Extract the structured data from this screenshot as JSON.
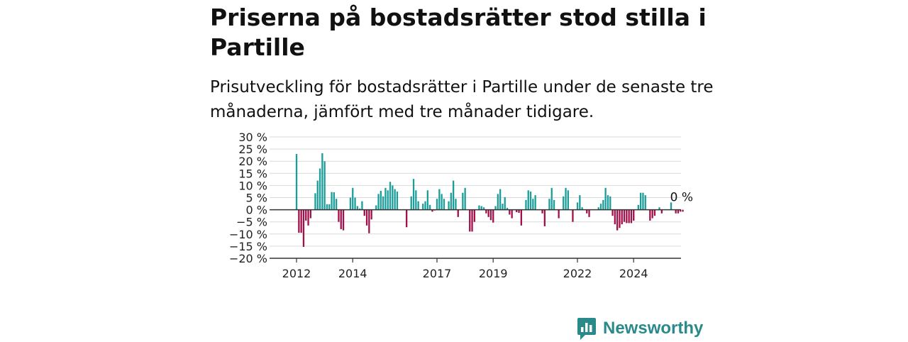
{
  "header": {
    "title": "Priserna på bostadsrätter stod stilla i Partille",
    "subtitle": "Prisutveckling för bostadsrätter i Partille under de senaste tre månaderna, jämfört med tre månader tidigare."
  },
  "chart_data": {
    "type": "bar",
    "ylim": [
      -20,
      30
    ],
    "y_ticks": [
      30,
      25,
      20,
      15,
      10,
      5,
      0,
      -5,
      -10,
      -15,
      -20
    ],
    "y_tick_labels": [
      "30 %",
      "25 %",
      "20 %",
      "15 %",
      "10 %",
      "5 %",
      "0 %",
      "−5 %",
      "−10 %",
      "−15 %",
      "−20 %"
    ],
    "x_ticks": [
      2012,
      2014,
      2017,
      2019,
      2022,
      2024
    ],
    "x_tick_labels": [
      "2012",
      "2014",
      "2017",
      "2019",
      "2022",
      "2024"
    ],
    "grid": true,
    "colors": {
      "positive": "#1b9e9a",
      "negative": "#a0104a",
      "grid": "#d9d9d9",
      "axis": "#333333"
    },
    "start_year": 2012,
    "values": [
      23,
      -9.5,
      -9.5,
      -15.3,
      -4.5,
      -6.5,
      -3.5,
      0,
      6.8,
      12,
      17,
      23.3,
      20,
      2.3,
      2.3,
      7.3,
      7.2,
      4.5,
      -5,
      -8,
      -8.5,
      0,
      0,
      5,
      9,
      5,
      1.5,
      0.5,
      3.5,
      -2.5,
      -6.5,
      -9.7,
      -4,
      0,
      1.8,
      6.5,
      7.8,
      5.5,
      9,
      8,
      11.5,
      10,
      8.5,
      7.5,
      0,
      0,
      0,
      -7.2,
      0,
      5.5,
      12.7,
      8,
      3.5,
      0,
      2.5,
      3.5,
      8,
      2,
      -0.8,
      -0.3,
      4.5,
      8.5,
      6.5,
      4.5,
      0,
      3.5,
      7,
      12,
      4.5,
      -3,
      0,
      7,
      9,
      0,
      -9,
      -9,
      -5,
      0,
      1.8,
      1.5,
      1,
      -1.5,
      -3,
      -4.3,
      -5.3,
      1.5,
      6.5,
      8.5,
      2.5,
      5.2,
      0.8,
      -2,
      -3.5,
      0,
      -1,
      -1.3,
      -6.5,
      0,
      4,
      8,
      7.5,
      4.5,
      6,
      0,
      0,
      -1.5,
      -6.8,
      0,
      4.5,
      9,
      4,
      0,
      -3.5,
      0,
      5.5,
      9,
      8,
      0,
      -5,
      0,
      3,
      6,
      1,
      0,
      -1.5,
      -3,
      0,
      0,
      0,
      1,
      2.5,
      4,
      9,
      6,
      5.5,
      -2.5,
      -6,
      -8.5,
      -7.5,
      -6,
      -5,
      -5.5,
      -5.5,
      -5.5,
      -4.5,
      0,
      2,
      7,
      7,
      6,
      0,
      -4.5,
      -3.5,
      -2.5,
      0,
      1,
      -1.5,
      0,
      0,
      0,
      3,
      0,
      -1.5,
      -1.5,
      -0.8,
      -0.8,
      0
    ],
    "last_value_label": "0 %"
  },
  "brand": {
    "name": "Newsworthy",
    "icon": "newsworthy-chart-icon",
    "color": "#2a8a8a"
  }
}
